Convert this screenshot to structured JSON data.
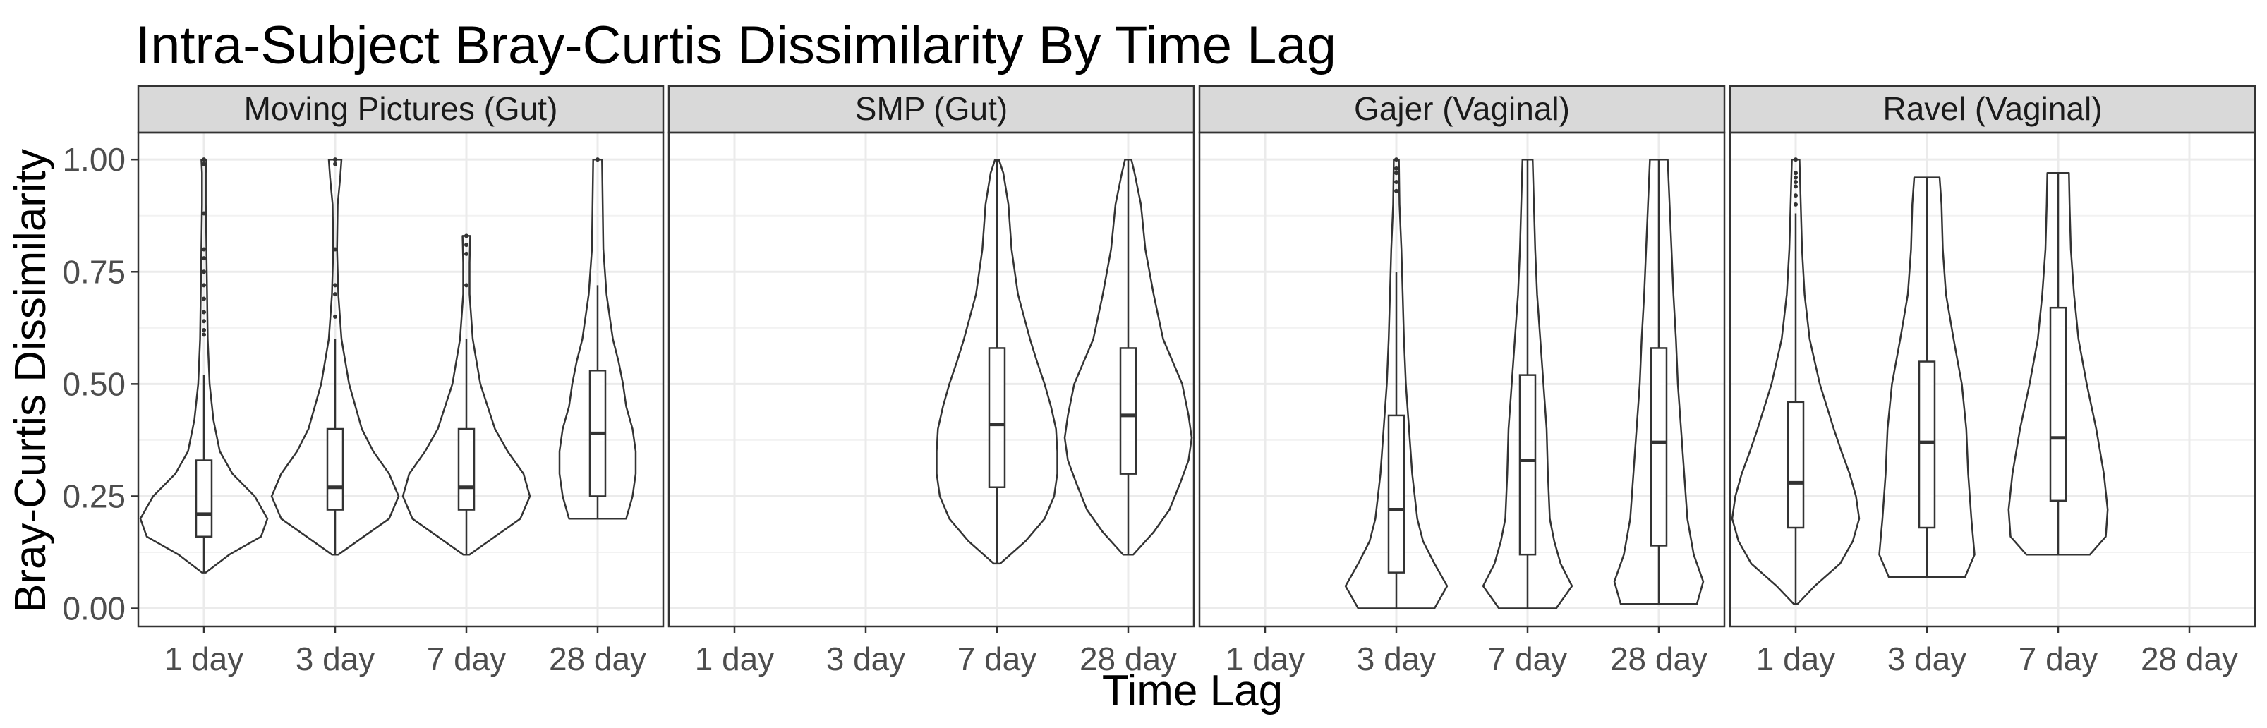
{
  "chart_data": {
    "type": "violin",
    "title": "Intra-Subject Bray-Curtis Dissimilarity By Time Lag",
    "xlabel": "Time Lag",
    "ylabel": "Bray-Curtis Dissimilarity",
    "ylim": [
      -0.04,
      1.06
    ],
    "y_ticks": [
      "0.00",
      "0.25",
      "0.50",
      "0.75",
      "1.00"
    ],
    "y_tick_values": [
      0,
      0.25,
      0.5,
      0.75,
      1.0
    ],
    "categories": [
      "1 day",
      "3 day",
      "7 day",
      "28 day"
    ],
    "grid": true,
    "panels": [
      {
        "name": "Moving Pictures (Gut)",
        "groups": [
          {
            "category": "1 day",
            "min": 0.08,
            "q1": 0.16,
            "median": 0.21,
            "q3": 0.33,
            "whisker_high": 0.52,
            "outliers": [
              0.61,
              0.62,
              0.64,
              0.66,
              0.69,
              0.72,
              0.75,
              0.78,
              0.8,
              0.88,
              0.99,
              1.0
            ],
            "density": [
              [
                0.08,
                0.03
              ],
              [
                0.12,
                0.4
              ],
              [
                0.16,
                0.9
              ],
              [
                0.2,
                1.0
              ],
              [
                0.25,
                0.8
              ],
              [
                0.3,
                0.45
              ],
              [
                0.35,
                0.25
              ],
              [
                0.42,
                0.15
              ],
              [
                0.5,
                0.09
              ],
              [
                0.6,
                0.06
              ],
              [
                0.7,
                0.05
              ],
              [
                0.8,
                0.04
              ],
              [
                0.9,
                0.03
              ],
              [
                0.97,
                0.03
              ],
              [
                1.0,
                0.04
              ]
            ]
          },
          {
            "category": "3 day",
            "min": 0.12,
            "q1": 0.22,
            "median": 0.27,
            "q3": 0.4,
            "whisker_high": 0.6,
            "outliers": [
              0.65,
              0.7,
              0.72,
              0.8,
              0.99,
              1.0
            ],
            "density": [
              [
                0.12,
                0.05
              ],
              [
                0.16,
                0.45
              ],
              [
                0.2,
                0.85
              ],
              [
                0.25,
                1.0
              ],
              [
                0.3,
                0.85
              ],
              [
                0.35,
                0.6
              ],
              [
                0.4,
                0.42
              ],
              [
                0.5,
                0.22
              ],
              [
                0.6,
                0.1
              ],
              [
                0.7,
                0.05
              ],
              [
                0.8,
                0.03
              ],
              [
                0.9,
                0.04
              ],
              [
                0.96,
                0.08
              ],
              [
                1.0,
                0.1
              ]
            ]
          },
          {
            "category": "7 day",
            "min": 0.12,
            "q1": 0.22,
            "median": 0.27,
            "q3": 0.4,
            "whisker_high": 0.6,
            "outliers": [
              0.72,
              0.79,
              0.81,
              0.83
            ],
            "density": [
              [
                0.12,
                0.05
              ],
              [
                0.16,
                0.45
              ],
              [
                0.2,
                0.85
              ],
              [
                0.25,
                1.0
              ],
              [
                0.3,
                0.9
              ],
              [
                0.35,
                0.65
              ],
              [
                0.4,
                0.45
              ],
              [
                0.5,
                0.22
              ],
              [
                0.6,
                0.1
              ],
              [
                0.7,
                0.05
              ],
              [
                0.77,
                0.05
              ],
              [
                0.83,
                0.06
              ]
            ]
          },
          {
            "category": "28 day",
            "min": 0.2,
            "q1": 0.25,
            "median": 0.39,
            "q3": 0.53,
            "whisker_high": 0.72,
            "outliers": [
              1.0
            ],
            "density": [
              [
                0.2,
                0.45
              ],
              [
                0.25,
                0.55
              ],
              [
                0.3,
                0.6
              ],
              [
                0.35,
                0.6
              ],
              [
                0.4,
                0.55
              ],
              [
                0.45,
                0.45
              ],
              [
                0.5,
                0.4
              ],
              [
                0.55,
                0.33
              ],
              [
                0.6,
                0.24
              ],
              [
                0.7,
                0.14
              ],
              [
                0.8,
                0.09
              ],
              [
                0.9,
                0.08
              ],
              [
                1.0,
                0.07
              ]
            ]
          }
        ]
      },
      {
        "name": "SMP (Gut)",
        "groups": [
          {
            "category": "7 day",
            "min": 0.1,
            "q1": 0.27,
            "median": 0.41,
            "q3": 0.58,
            "whisker_high": 1.0,
            "outliers": [],
            "density": [
              [
                0.1,
                0.05
              ],
              [
                0.15,
                0.45
              ],
              [
                0.2,
                0.75
              ],
              [
                0.25,
                0.9
              ],
              [
                0.3,
                0.95
              ],
              [
                0.35,
                0.95
              ],
              [
                0.4,
                0.93
              ],
              [
                0.45,
                0.85
              ],
              [
                0.5,
                0.75
              ],
              [
                0.55,
                0.63
              ],
              [
                0.6,
                0.52
              ],
              [
                0.7,
                0.33
              ],
              [
                0.8,
                0.23
              ],
              [
                0.9,
                0.18
              ],
              [
                0.97,
                0.1
              ],
              [
                1.0,
                0.03
              ]
            ]
          },
          {
            "category": "28 day",
            "min": 0.12,
            "q1": 0.3,
            "median": 0.43,
            "q3": 0.58,
            "whisker_high": 1.0,
            "outliers": [],
            "density": [
              [
                0.12,
                0.08
              ],
              [
                0.17,
                0.4
              ],
              [
                0.22,
                0.65
              ],
              [
                0.28,
                0.82
              ],
              [
                0.33,
                0.95
              ],
              [
                0.38,
                1.0
              ],
              [
                0.43,
                0.95
              ],
              [
                0.5,
                0.85
              ],
              [
                0.55,
                0.7
              ],
              [
                0.6,
                0.55
              ],
              [
                0.7,
                0.4
              ],
              [
                0.8,
                0.27
              ],
              [
                0.9,
                0.2
              ],
              [
                0.97,
                0.1
              ],
              [
                1.0,
                0.05
              ]
            ]
          }
        ]
      },
      {
        "name": "Gajer (Vaginal)",
        "groups": [
          {
            "category": "3 day",
            "min": 0.0,
            "q1": 0.08,
            "median": 0.22,
            "q3": 0.43,
            "whisker_high": 0.75,
            "outliers": [
              0.93,
              0.95,
              0.97,
              0.98,
              1.0
            ],
            "density": [
              [
                0.0,
                0.6
              ],
              [
                0.05,
                0.8
              ],
              [
                0.1,
                0.6
              ],
              [
                0.15,
                0.42
              ],
              [
                0.2,
                0.33
              ],
              [
                0.3,
                0.25
              ],
              [
                0.4,
                0.2
              ],
              [
                0.5,
                0.15
              ],
              [
                0.6,
                0.12
              ],
              [
                0.7,
                0.1
              ],
              [
                0.8,
                0.08
              ],
              [
                0.9,
                0.05
              ],
              [
                1.0,
                0.04
              ]
            ]
          },
          {
            "category": "7 day",
            "min": 0.0,
            "q1": 0.12,
            "median": 0.33,
            "q3": 0.52,
            "whisker_high": 1.0,
            "outliers": [],
            "density": [
              [
                0.0,
                0.45
              ],
              [
                0.05,
                0.7
              ],
              [
                0.1,
                0.52
              ],
              [
                0.15,
                0.42
              ],
              [
                0.2,
                0.35
              ],
              [
                0.3,
                0.32
              ],
              [
                0.4,
                0.3
              ],
              [
                0.5,
                0.25
              ],
              [
                0.6,
                0.2
              ],
              [
                0.7,
                0.15
              ],
              [
                0.8,
                0.12
              ],
              [
                0.9,
                0.1
              ],
              [
                1.0,
                0.08
              ]
            ]
          },
          {
            "category": "28 day",
            "min": 0.01,
            "q1": 0.14,
            "median": 0.37,
            "q3": 0.58,
            "whisker_high": 1.0,
            "outliers": [],
            "density": [
              [
                0.01,
                0.6
              ],
              [
                0.06,
                0.7
              ],
              [
                0.12,
                0.55
              ],
              [
                0.2,
                0.45
              ],
              [
                0.3,
                0.4
              ],
              [
                0.4,
                0.35
              ],
              [
                0.5,
                0.3
              ],
              [
                0.6,
                0.27
              ],
              [
                0.7,
                0.23
              ],
              [
                0.8,
                0.2
              ],
              [
                0.9,
                0.17
              ],
              [
                1.0,
                0.14
              ]
            ]
          }
        ]
      },
      {
        "name": "Ravel (Vaginal)",
        "groups": [
          {
            "category": "1 day",
            "min": 0.01,
            "q1": 0.18,
            "median": 0.28,
            "q3": 0.46,
            "whisker_high": 0.88,
            "outliers": [
              0.9,
              0.92,
              0.94,
              0.95,
              0.96,
              0.97,
              1.0
            ],
            "density": [
              [
                0.01,
                0.03
              ],
              [
                0.05,
                0.3
              ],
              [
                0.1,
                0.7
              ],
              [
                0.15,
                0.9
              ],
              [
                0.2,
                1.0
              ],
              [
                0.25,
                0.95
              ],
              [
                0.3,
                0.85
              ],
              [
                0.35,
                0.72
              ],
              [
                0.4,
                0.6
              ],
              [
                0.5,
                0.38
              ],
              [
                0.6,
                0.22
              ],
              [
                0.7,
                0.14
              ],
              [
                0.8,
                0.1
              ],
              [
                0.9,
                0.08
              ],
              [
                1.0,
                0.06
              ]
            ]
          },
          {
            "category": "3 day",
            "min": 0.07,
            "q1": 0.18,
            "median": 0.37,
            "q3": 0.55,
            "whisker_high": 0.96,
            "outliers": [],
            "density": [
              [
                0.07,
                0.6
              ],
              [
                0.12,
                0.75
              ],
              [
                0.2,
                0.7
              ],
              [
                0.3,
                0.65
              ],
              [
                0.4,
                0.62
              ],
              [
                0.5,
                0.55
              ],
              [
                0.6,
                0.42
              ],
              [
                0.7,
                0.3
              ],
              [
                0.8,
                0.25
              ],
              [
                0.9,
                0.23
              ],
              [
                0.96,
                0.2
              ]
            ]
          },
          {
            "category": "7 day",
            "min": 0.12,
            "q1": 0.24,
            "median": 0.38,
            "q3": 0.67,
            "whisker_high": 0.97,
            "outliers": [],
            "density": [
              [
                0.12,
                0.5
              ],
              [
                0.16,
                0.75
              ],
              [
                0.22,
                0.78
              ],
              [
                0.3,
                0.72
              ],
              [
                0.4,
                0.6
              ],
              [
                0.5,
                0.45
              ],
              [
                0.6,
                0.32
              ],
              [
                0.7,
                0.25
              ],
              [
                0.8,
                0.2
              ],
              [
                0.9,
                0.18
              ],
              [
                0.97,
                0.17
              ]
            ]
          }
        ]
      }
    ]
  }
}
